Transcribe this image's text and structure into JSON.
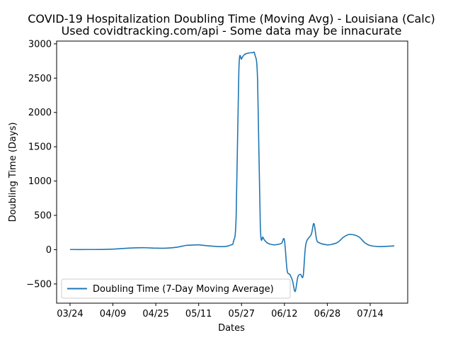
{
  "chart_data": {
    "type": "line",
    "title": "COVID-19 Hospitalization Doubling Time (Moving Avg) - Louisiana (Calc)",
    "subtitle": "Used covidtracking.com/api - Some data may be innacurate",
    "xlabel": "Dates",
    "ylabel": "Doubling Time (Days)",
    "ylim": [
      -780,
      3040
    ],
    "xlim": [
      "2020-03-19",
      "2020-07-28"
    ],
    "grid": false,
    "legend_position": "lower-left",
    "x_ticks": [
      "03/24",
      "04/09",
      "04/25",
      "05/11",
      "05/27",
      "06/12",
      "06/28",
      "07/14"
    ],
    "y_ticks": [
      -500,
      0,
      500,
      1000,
      1500,
      2000,
      2500,
      3000
    ],
    "series": [
      {
        "name": "Doubling Time (7-Day Moving Average)",
        "color": "#1f77b4",
        "x": [
          "2020-03-24",
          "2020-03-30",
          "2020-04-05",
          "2020-04-09",
          "2020-04-13",
          "2020-04-17",
          "2020-04-21",
          "2020-04-25",
          "2020-04-29",
          "2020-05-03",
          "2020-05-06",
          "2020-05-08",
          "2020-05-11",
          "2020-05-14",
          "2020-05-18",
          "2020-05-21",
          "2020-05-23",
          "2020-05-24",
          "2020-05-25",
          "2020-05-26",
          "2020-05-27",
          "2020-05-28",
          "2020-05-29",
          "2020-05-31",
          "2020-06-01",
          "2020-06-02",
          "2020-06-03",
          "2020-06-04",
          "2020-06-05",
          "2020-06-06",
          "2020-06-08",
          "2020-06-10",
          "2020-06-11",
          "2020-06-12",
          "2020-06-13",
          "2020-06-14",
          "2020-06-15",
          "2020-06-16",
          "2020-06-17",
          "2020-06-18",
          "2020-06-19",
          "2020-06-20",
          "2020-06-22",
          "2020-06-23",
          "2020-06-24",
          "2020-06-25",
          "2020-06-28",
          "2020-06-30",
          "2020-07-02",
          "2020-07-04",
          "2020-07-06",
          "2020-07-08",
          "2020-07-10",
          "2020-07-12",
          "2020-07-14",
          "2020-07-17",
          "2020-07-20",
          "2020-07-23"
        ],
        "values": [
          2,
          2,
          3,
          8,
          18,
          26,
          28,
          22,
          22,
          36,
          60,
          66,
          70,
          58,
          45,
          47,
          70,
          120,
          500,
          2620,
          2780,
          2840,
          2860,
          2870,
          2840,
          2450,
          350,
          180,
          120,
          90,
          70,
          80,
          95,
          140,
          -300,
          -360,
          -450,
          -610,
          -400,
          -360,
          -380,
          80,
          220,
          380,
          150,
          100,
          70,
          80,
          110,
          180,
          220,
          215,
          180,
          100,
          60,
          45,
          48,
          55
        ]
      }
    ]
  }
}
